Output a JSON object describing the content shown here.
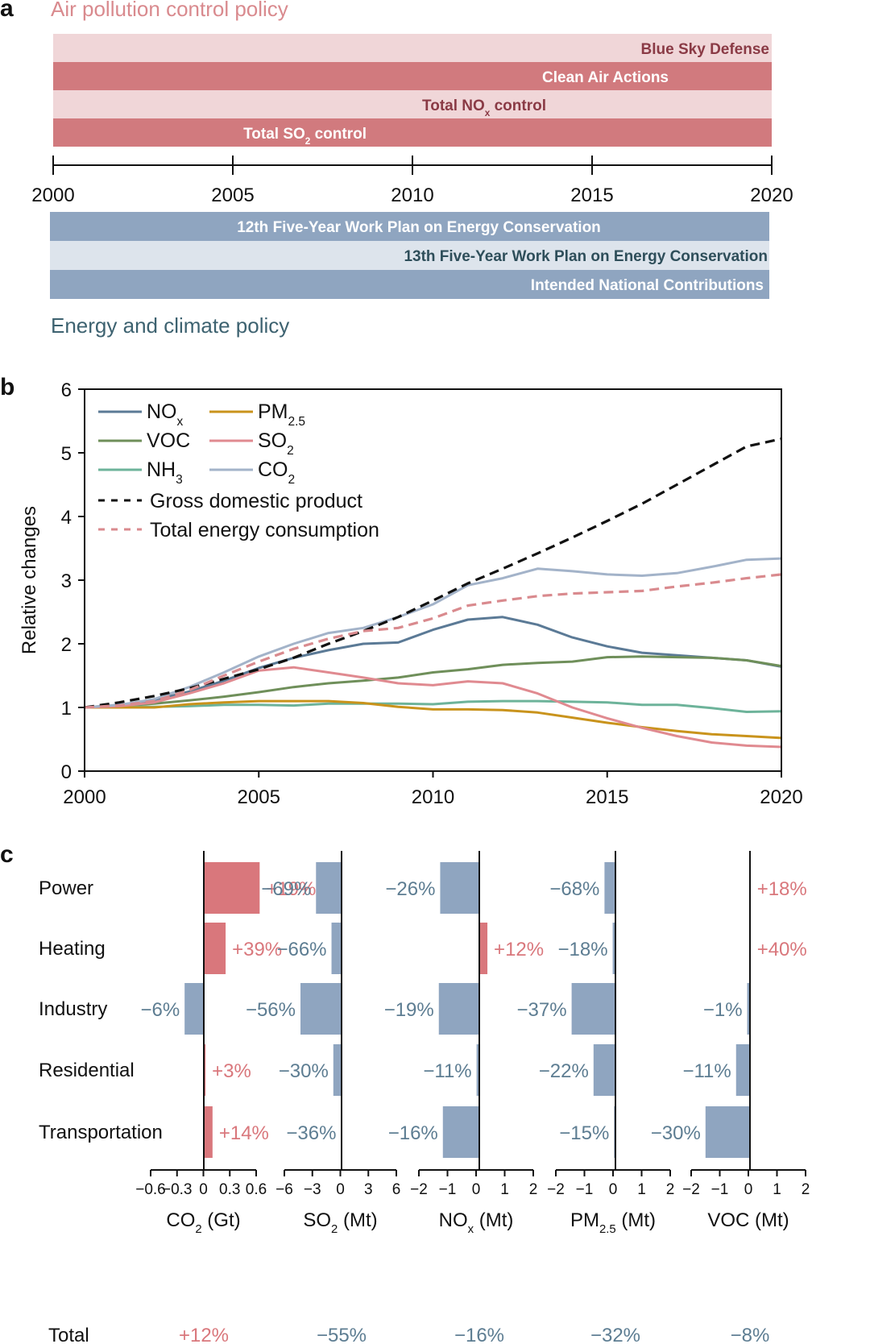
{
  "panel_a": {
    "letter": "a",
    "air_title": "Air pollution control policy",
    "energy_title": "Energy and climate policy",
    "colors": {
      "air_dark": "#d17a7e",
      "air_light": "#f0d6d8",
      "air_title": "#d98a8e",
      "air_text_dark": "#8a3a45",
      "energy_dark": "#8fa5c0",
      "energy_light": "#dde4ec",
      "energy_title": "#3d6270",
      "energy_text_dark": "#2e4e5a"
    },
    "timeline": {
      "start": 2000,
      "end": 2020,
      "ticks": [
        "2000",
        "2005",
        "2010",
        "2015",
        "2020"
      ]
    },
    "air_policies": [
      {
        "label": "Blue Sky Defense",
        "start": 2000,
        "end": 2020,
        "style": "light",
        "align": "right"
      },
      {
        "label": "Clean Air Actions",
        "start": 2000,
        "end": 2020,
        "style": "dark",
        "align": "center-right"
      },
      {
        "label": "Total NO",
        "sub": "x",
        "suffix": " control",
        "start": 2000,
        "end": 2020,
        "style": "light",
        "align": "center-right"
      },
      {
        "label": "Total SO",
        "sub": "2",
        "suffix": " control",
        "start": 2000,
        "end": 2020,
        "style": "dark",
        "align": "center-left"
      }
    ],
    "energy_policies": [
      {
        "label": "12th Five-Year Work Plan on Energy Conservation",
        "start": 2000,
        "end": 2020,
        "style": "dark",
        "align": "center"
      },
      {
        "label": "13th Five-Year Work Plan on Energy Conservation",
        "start": 2000,
        "end": 2020,
        "style": "light",
        "align": "right"
      },
      {
        "label": "Intended National Contributions",
        "start": 2000,
        "end": 2020,
        "style": "dark",
        "align": "right"
      }
    ]
  },
  "chart_data": [
    {
      "panel": "b",
      "type": "line",
      "title": "",
      "xlabel": "",
      "ylabel": "Relative changes",
      "xlim": [
        2000,
        2020
      ],
      "ylim": [
        0,
        6
      ],
      "xticks": [
        "2000",
        "2005",
        "2010",
        "2015",
        "2020"
      ],
      "yticks": [
        "0",
        "1",
        "2",
        "3",
        "4",
        "5",
        "6"
      ],
      "grid": false,
      "legend_position": "top-left",
      "x": [
        2000,
        2001,
        2002,
        2003,
        2004,
        2005,
        2006,
        2007,
        2008,
        2009,
        2010,
        2011,
        2012,
        2013,
        2014,
        2015,
        2016,
        2017,
        2018,
        2019,
        2020
      ],
      "series": [
        {
          "name": "NO",
          "sub": "x",
          "color": "#5b7a96",
          "dash": false,
          "values": [
            1.0,
            1.04,
            1.12,
            1.25,
            1.42,
            1.62,
            1.78,
            1.9,
            2.0,
            2.02,
            2.22,
            2.38,
            2.42,
            2.3,
            2.1,
            1.96,
            1.86,
            1.82,
            1.78,
            1.74,
            1.64
          ]
        },
        {
          "name": "VOC",
          "sub": "",
          "color": "#6f8f5a",
          "dash": false,
          "values": [
            1.0,
            1.02,
            1.06,
            1.11,
            1.17,
            1.24,
            1.32,
            1.38,
            1.42,
            1.47,
            1.55,
            1.6,
            1.67,
            1.7,
            1.72,
            1.79,
            1.8,
            1.79,
            1.78,
            1.74,
            1.65
          ]
        },
        {
          "name": "NH",
          "sub": "3",
          "color": "#6db39a",
          "dash": false,
          "values": [
            1.0,
            1.01,
            1.01,
            1.02,
            1.04,
            1.04,
            1.03,
            1.06,
            1.06,
            1.06,
            1.05,
            1.09,
            1.1,
            1.1,
            1.09,
            1.08,
            1.04,
            1.04,
            0.99,
            0.93,
            0.94
          ]
        },
        {
          "name": "PM",
          "sub": "2.5",
          "color": "#c9931c",
          "dash": false,
          "values": [
            1.0,
            1.0,
            1.0,
            1.05,
            1.08,
            1.1,
            1.1,
            1.1,
            1.07,
            1.01,
            0.97,
            0.97,
            0.96,
            0.92,
            0.84,
            0.76,
            0.69,
            0.63,
            0.58,
            0.55,
            0.52
          ]
        },
        {
          "name": "SO",
          "sub": "2",
          "color": "#e08a90",
          "dash": false,
          "values": [
            1.0,
            1.02,
            1.08,
            1.22,
            1.38,
            1.58,
            1.63,
            1.55,
            1.47,
            1.38,
            1.35,
            1.41,
            1.38,
            1.22,
            1.0,
            0.83,
            0.68,
            0.55,
            0.45,
            0.4,
            0.38
          ]
        },
        {
          "name": "CO",
          "sub": "2",
          "color": "#a3b3c9",
          "dash": false,
          "values": [
            1.0,
            1.04,
            1.13,
            1.32,
            1.55,
            1.8,
            2.0,
            2.17,
            2.25,
            2.42,
            2.62,
            2.92,
            3.03,
            3.18,
            3.14,
            3.09,
            3.07,
            3.11,
            3.21,
            3.32,
            3.34
          ]
        },
        {
          "name": "Gross domestic product",
          "sub": "",
          "color": "#111111",
          "dash": true,
          "values": [
            1.0,
            1.08,
            1.18,
            1.3,
            1.45,
            1.6,
            1.78,
            2.0,
            2.2,
            2.42,
            2.68,
            2.95,
            3.18,
            3.42,
            3.67,
            3.93,
            4.2,
            4.5,
            4.8,
            5.1,
            5.22
          ]
        },
        {
          "name": "Total energy consumption",
          "sub": "",
          "color": "#d98a8e",
          "dash": true,
          "values": [
            1.0,
            1.03,
            1.1,
            1.27,
            1.5,
            1.72,
            1.92,
            2.08,
            2.2,
            2.25,
            2.4,
            2.6,
            2.68,
            2.75,
            2.79,
            2.81,
            2.83,
            2.9,
            2.96,
            3.03,
            3.09
          ]
        }
      ]
    },
    {
      "panel": "c",
      "type": "bar",
      "orientation": "horizontal",
      "categories": [
        "Power",
        "Heating",
        "Industry",
        "Residential",
        "Transportation"
      ],
      "total_label": "Total",
      "colors": {
        "positive": "#d9777c",
        "negative": "#8fa5c0",
        "positive_text": "#d9777c",
        "negative_text": "#5d7d92"
      },
      "subplots": [
        {
          "name": "CO",
          "sub": "2",
          "unit": " (Gt)",
          "xlim": [
            -0.6,
            0.6
          ],
          "xticks": [
            "−0.6",
            "−0.3",
            "0",
            "0.3",
            "0.6"
          ],
          "values": [
            0.64,
            0.25,
            -0.22,
            0.02,
            0.1
          ],
          "labels": [
            "+19%",
            "+39%",
            "−6%",
            "+3%",
            "+14%"
          ],
          "total": "+12%"
        },
        {
          "name": "SO",
          "sub": "2",
          "unit": " (Mt)",
          "xlim": [
            -6,
            6
          ],
          "xticks": [
            "−6",
            "−3",
            "0",
            "3",
            "6"
          ],
          "values": [
            -2.8,
            -1.1,
            -4.5,
            -0.9,
            -0.05
          ],
          "labels": [
            "−69%",
            "−66%",
            "−56%",
            "−30%",
            "−36%"
          ],
          "total": "−55%"
        },
        {
          "name": "NO",
          "sub": "x",
          "unit": " (Mt)",
          "xlim": [
            -2,
            2
          ],
          "xticks": [
            "−2",
            "−1",
            "0",
            "1",
            "2"
          ],
          "values": [
            -1.45,
            0.3,
            -1.5,
            -0.1,
            -1.35
          ],
          "labels": [
            "−26%",
            "+12%",
            "−19%",
            "−11%",
            "−16%"
          ],
          "total": "−16%"
        },
        {
          "name": "PM",
          "sub": "2.5",
          "unit": " (Mt)",
          "xlim": [
            -2,
            2
          ],
          "xticks": [
            "−2",
            "−1",
            "0",
            "1",
            "2"
          ],
          "values": [
            -0.4,
            -0.1,
            -1.6,
            -0.8,
            -0.05
          ],
          "labels": [
            "−68%",
            "−18%",
            "−37%",
            "−22%",
            "−15%"
          ],
          "total": "−32%"
        },
        {
          "name": "VOC",
          "sub": "",
          "unit": " (Mt)",
          "xlim": [
            -2,
            2
          ],
          "xticks": [
            "−2",
            "−1",
            "0",
            "1",
            "2"
          ],
          "values": [
            0.02,
            0.02,
            -0.1,
            -0.5,
            -1.6
          ],
          "labels": [
            "+18%",
            "+40%",
            "−1%",
            "−11%",
            "−30%"
          ],
          "total": "−8%"
        }
      ]
    }
  ],
  "panel_b": {
    "letter": "b"
  },
  "panel_c": {
    "letter": "c"
  }
}
